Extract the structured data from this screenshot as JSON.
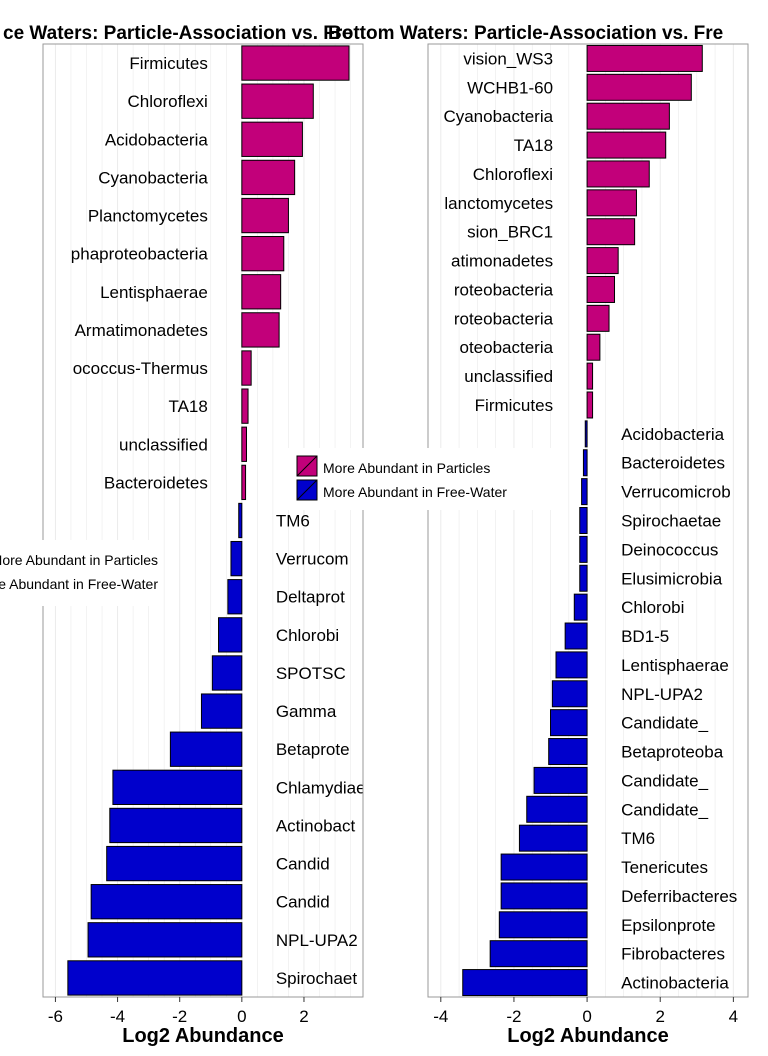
{
  "colors": {
    "particles": "#C2007A",
    "free_water": "#0000CC",
    "panel_border": "#999999",
    "grid": "#EBEBEB",
    "bar_outline": "#000000"
  },
  "chart_data": [
    {
      "type": "bar",
      "orientation": "horizontal",
      "title": "ce Waters: Particle-Association vs. Fre",
      "xlabel": "Log2 Abundance",
      "xlim": [
        -6.4,
        3.9
      ],
      "xticks": [
        -6,
        -4,
        -2,
        0,
        2
      ],
      "categories": [
        "Firmicutes",
        "Chloroflexi",
        "Acidobacteria",
        "Cyanobacteria",
        "Planctomycetes",
        "phaproteobacteria",
        "Lentisphaerae",
        "Armatimonadetes",
        "ococcus-Thermus",
        "TA18",
        "unclassified",
        "Bacteroidetes",
        "TM6",
        "Verrucom",
        "Deltaprot",
        "Chlorobi",
        "SPOTSC",
        "Gamma",
        "Betaprote",
        "Chlamydiae",
        "Actinobact",
        "Candid",
        "Candid",
        "NPL-UPA2",
        "Spirochaet"
      ],
      "values": [
        3.45,
        2.3,
        1.95,
        1.7,
        1.5,
        1.35,
        1.25,
        1.2,
        0.3,
        0.2,
        0.15,
        0.12,
        -0.1,
        -0.35,
        -0.45,
        -0.75,
        -0.95,
        -1.3,
        -2.3,
        -4.15,
        -4.25,
        -4.35,
        -4.85,
        -4.95,
        -5.6
      ],
      "legend": [
        {
          "label": "More Abundant in Particles",
          "color": "#C2007A"
        },
        {
          "label": "More Abundant in Free-Water",
          "color": "#0000CC"
        }
      ]
    },
    {
      "type": "bar",
      "orientation": "horizontal",
      "title": "Bottom Waters: Particle-Association vs. Fre",
      "xlabel": "Log2 Abundance",
      "xlim": [
        -4.35,
        4.4
      ],
      "xticks": [
        -4,
        -2,
        0,
        2,
        4
      ],
      "categories": [
        "vision_WS3",
        "WCHB1-60",
        "Cyanobacteria",
        "TA18",
        "Chloroflexi",
        "lanctomycetes",
        "sion_BRC1",
        "atimonadetes",
        "roteobacteria",
        "roteobacteria",
        "oteobacteria",
        "unclassified",
        "Firmicutes",
        "Acidobacteria",
        "Bacteroidetes",
        "Verrucomicrob",
        "Spirochaetae",
        "Deinococcus",
        "Elusimicrobia",
        "Chlorobi",
        "BD1-5",
        "Lentisphaerae",
        "NPL-UPA2",
        "Candidate_",
        "Betaproteoba",
        "Candidate_",
        "Candidate_",
        "TM6",
        "Tenericutes",
        "Deferribacteres",
        "Epsilonprote",
        "Fibrobacteres",
        "Actinobacteria"
      ],
      "values": [
        3.15,
        2.85,
        2.25,
        2.15,
        1.7,
        1.35,
        1.3,
        0.85,
        0.75,
        0.6,
        0.35,
        0.15,
        0.15,
        -0.05,
        -0.1,
        -0.15,
        -0.2,
        -0.2,
        -0.2,
        -0.35,
        -0.6,
        -0.85,
        -0.95,
        -1.0,
        -1.05,
        -1.45,
        -1.65,
        -1.85,
        -2.35,
        -2.35,
        -2.4,
        -2.65,
        -3.4
      ],
      "legend": [
        {
          "label": "More Abundant in Particles",
          "color": "#C2007A"
        },
        {
          "label": "More Abundant in Free-Water",
          "color": "#0000CC"
        }
      ]
    }
  ]
}
